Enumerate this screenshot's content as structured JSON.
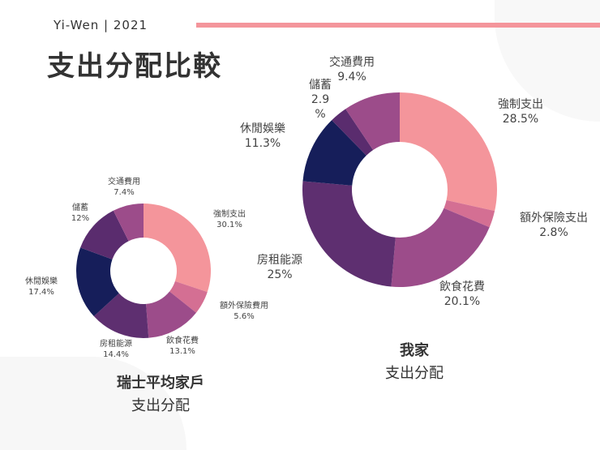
{
  "header": {
    "subtitle": "Yi-Wen | 2021",
    "title": "支出分配比較"
  },
  "colors": {
    "accent": "#F4959B"
  },
  "chart_data": [
    {
      "type": "pie",
      "donut": true,
      "caption": {
        "line1": "瑞士平均家戶",
        "line2": "支出分配"
      },
      "categories": [
        "強制支出",
        "額外保險費用",
        "飲食花費",
        "房租能源",
        "休閒娛樂",
        "儲蓄",
        "交通費用"
      ],
      "values": [
        30.1,
        5.6,
        13.1,
        14.4,
        17.4,
        12,
        7.4
      ],
      "labels": [
        "30.1%",
        "5.6%",
        "13.1%",
        "14.4%",
        "17.4%",
        "12%",
        "7.4%"
      ],
      "colors": [
        "#F4959B",
        "#D46F93",
        "#9C4C8A",
        "#5E2F70",
        "#161E5A",
        "#5A2C6E",
        "#9C4C8A"
      ]
    },
    {
      "type": "pie",
      "donut": true,
      "caption": {
        "line1": "我家",
        "line2": "支出分配"
      },
      "categories": [
        "強制支出",
        "額外保險支出",
        "飲食花費",
        "房租能源",
        "休閒娛樂",
        "儲蓄",
        "交通費用"
      ],
      "values": [
        28.5,
        2.8,
        20.1,
        25,
        11.3,
        2.9,
        9.4
      ],
      "labels": [
        "28.5%",
        "2.8%",
        "20.1%",
        "25%",
        "11.3%",
        "2.9\n%",
        "9.4%"
      ],
      "colors": [
        "#F4959B",
        "#D46F93",
        "#9C4C8A",
        "#5E2F70",
        "#161E5A",
        "#5A2C6E",
        "#9C4C8A"
      ]
    }
  ]
}
